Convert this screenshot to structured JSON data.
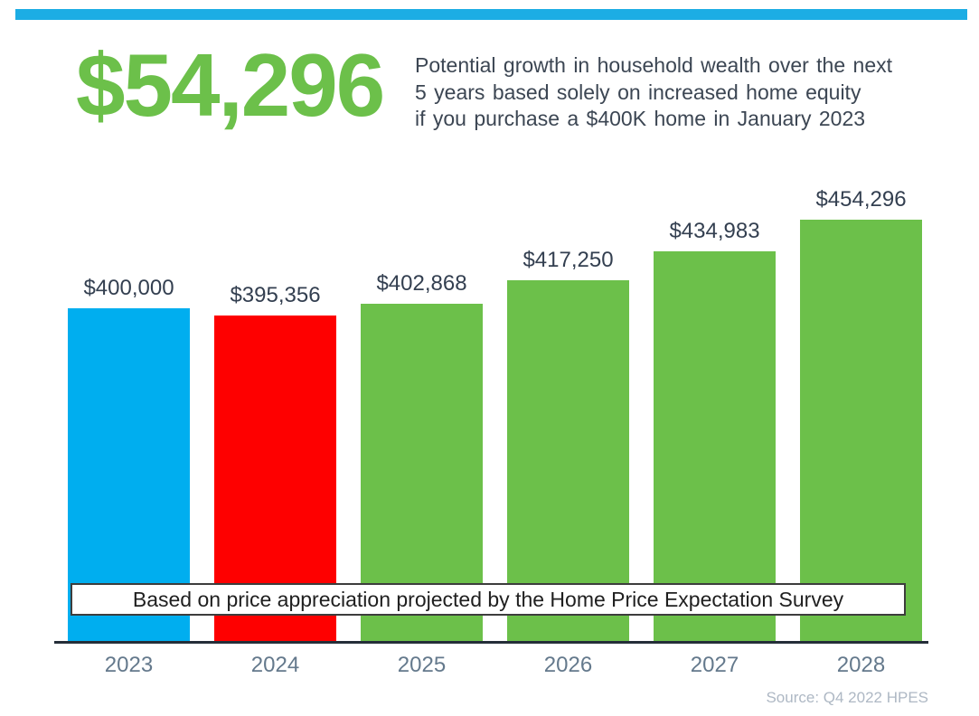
{
  "header": {
    "big_number": "$54,296",
    "subtitle_lines": [
      "Potential growth in household wealth over the next",
      "5 years based solely on increased home equity",
      "if you purchase a $400K home in January 2023"
    ]
  },
  "chart_data": {
    "type": "bar",
    "title": "$54,296",
    "subtitle": "Potential growth in household wealth over the next 5 years based solely on increased home equity if you purchase a $400K home in January 2023",
    "categories": [
      "2023",
      "2024",
      "2025",
      "2026",
      "2027",
      "2028"
    ],
    "values": [
      400000,
      395356,
      402868,
      417250,
      434983,
      454296
    ],
    "value_labels": [
      "$400,000",
      "$395,356",
      "$402,868",
      "$417,250",
      "$434,983",
      "$454,296"
    ],
    "bar_colors": [
      "#00AEEF",
      "#FE0000",
      "#6CC04A",
      "#6CC04A",
      "#6CC04A",
      "#6CC04A"
    ],
    "xlabel": "",
    "ylabel": "",
    "ylim": [
      195500,
      480000
    ],
    "grid": false,
    "legend": null,
    "annotation": "Based on price appreciation projected by the Home Price Expectation Survey"
  },
  "banner": {
    "text": "Based on price appreciation projected by the Home Price Expectation Survey"
  },
  "source": {
    "text": "Source: Q4 2022 HPES"
  },
  "colors": {
    "accent_strip_blue": "#1CADE4",
    "bar_blue": "#00AEEF",
    "bar_red": "#FE0000",
    "bar_green": "#6CC04A",
    "big_number_green": "#6CC04A",
    "subtitle_text": "#3C4653",
    "value_label_text": "#333F50",
    "x_label_text": "#64798C",
    "axis_line": "#252E39",
    "banner_text": "#1f1f1f",
    "source_text": "#AEB8C4"
  }
}
